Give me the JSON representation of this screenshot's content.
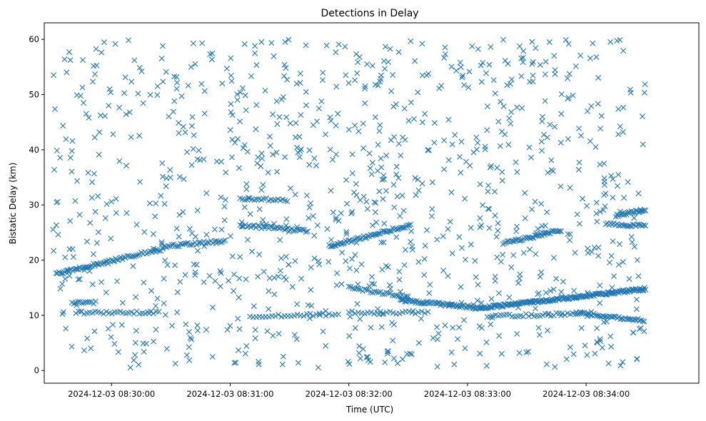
{
  "chart_data": {
    "type": "scatter",
    "title": "Detections in Delay",
    "xlabel": "Time (UTC)",
    "ylabel": "Bistatic Delay (km)",
    "marker": "x",
    "color": "#1f77b4",
    "grid": false,
    "legend": "none",
    "x_axis": {
      "kind": "datetime",
      "range": [
        "2024-12-03 08:29:26",
        "2024-12-03 08:34:57"
      ],
      "ticks": [
        "2024-12-03 08:30:00",
        "2024-12-03 08:31:00",
        "2024-12-03 08:32:00",
        "2024-12-03 08:33:00",
        "2024-12-03 08:34:00"
      ]
    },
    "y_axis": {
      "range": [
        -2.3,
        63
      ],
      "ticks": [
        0,
        10,
        20,
        30,
        40,
        50,
        60
      ]
    },
    "tracks": [
      {
        "start": "2024-12-03 08:29:32",
        "end": "2024-12-03 08:30:07",
        "y0": 17.5,
        "y1": 20.5,
        "step_s": 0.7
      },
      {
        "start": "2024-12-03 08:30:07",
        "end": "2024-12-03 08:30:26",
        "y0": 20.5,
        "y1": 22.0,
        "step_s": 0.9
      },
      {
        "start": "2024-12-03 08:30:26",
        "end": "2024-12-03 08:30:58",
        "y0": 22.5,
        "y1": 23.5,
        "step_s": 0.9
      },
      {
        "start": "2024-12-03 08:31:05",
        "end": "2024-12-03 08:31:40",
        "y0": 26.3,
        "y1": 25.3,
        "step_s": 0.9
      },
      {
        "start": "2024-12-03 08:31:50",
        "end": "2024-12-03 08:32:32",
        "y0": 22.5,
        "y1": 26.5,
        "step_s": 0.7
      },
      {
        "start": "2024-12-03 08:32:26",
        "end": "2024-12-03 08:33:06",
        "y0": 12.8,
        "y1": 11.3,
        "step_s": 0.6
      },
      {
        "start": "2024-12-03 08:33:06",
        "end": "2024-12-03 08:34:30",
        "y0": 11.3,
        "y1": 14.8,
        "step_s": 0.5
      },
      {
        "start": "2024-12-03 08:33:18",
        "end": "2024-12-03 08:33:48",
        "y0": 23.0,
        "y1": 25.5,
        "step_s": 0.7
      },
      {
        "start": "2024-12-03 08:33:55",
        "end": "2024-12-03 08:34:30",
        "y0": 10.5,
        "y1": 9.0,
        "step_s": 0.8
      },
      {
        "start": "2024-12-03 08:34:15",
        "end": "2024-12-03 08:34:30",
        "y0": 28.0,
        "y1": 29.2,
        "step_s": 0.6
      },
      {
        "start": "2024-12-03 08:34:10",
        "end": "2024-12-03 08:34:30",
        "y0": 26.5,
        "y1": 26.2,
        "step_s": 0.8
      },
      {
        "start": "2024-12-03 08:29:42",
        "end": "2024-12-03 08:30:25",
        "y0": 10.5,
        "y1": 10.5,
        "step_s": 1.4
      },
      {
        "start": "2024-12-03 08:29:40",
        "end": "2024-12-03 08:29:52",
        "y0": 12.3,
        "y1": 12.3,
        "step_s": 1.0
      },
      {
        "start": "2024-12-03 08:31:05",
        "end": "2024-12-03 08:31:28",
        "y0": 31.0,
        "y1": 31.0,
        "step_s": 1.2
      },
      {
        "start": "2024-12-03 08:31:10",
        "end": "2024-12-03 08:31:55",
        "y0": 9.8,
        "y1": 10.2,
        "step_s": 1.6
      },
      {
        "start": "2024-12-03 08:32:00",
        "end": "2024-12-03 08:32:40",
        "y0": 10.5,
        "y1": 10.5,
        "step_s": 1.6
      },
      {
        "start": "2024-12-03 08:33:10",
        "end": "2024-12-03 08:33:55",
        "y0": 9.8,
        "y1": 10.3,
        "step_s": 1.4
      },
      {
        "start": "2024-12-03 08:32:00",
        "end": "2024-12-03 08:32:30",
        "y0": 15.0,
        "y1": 13.3,
        "step_s": 1.0
      }
    ],
    "scatter": {
      "count": 1000,
      "x_range": [
        "2024-12-03 08:29:30",
        "2024-12-03 08:34:30"
      ],
      "y_range": [
        0.5,
        60
      ]
    }
  }
}
